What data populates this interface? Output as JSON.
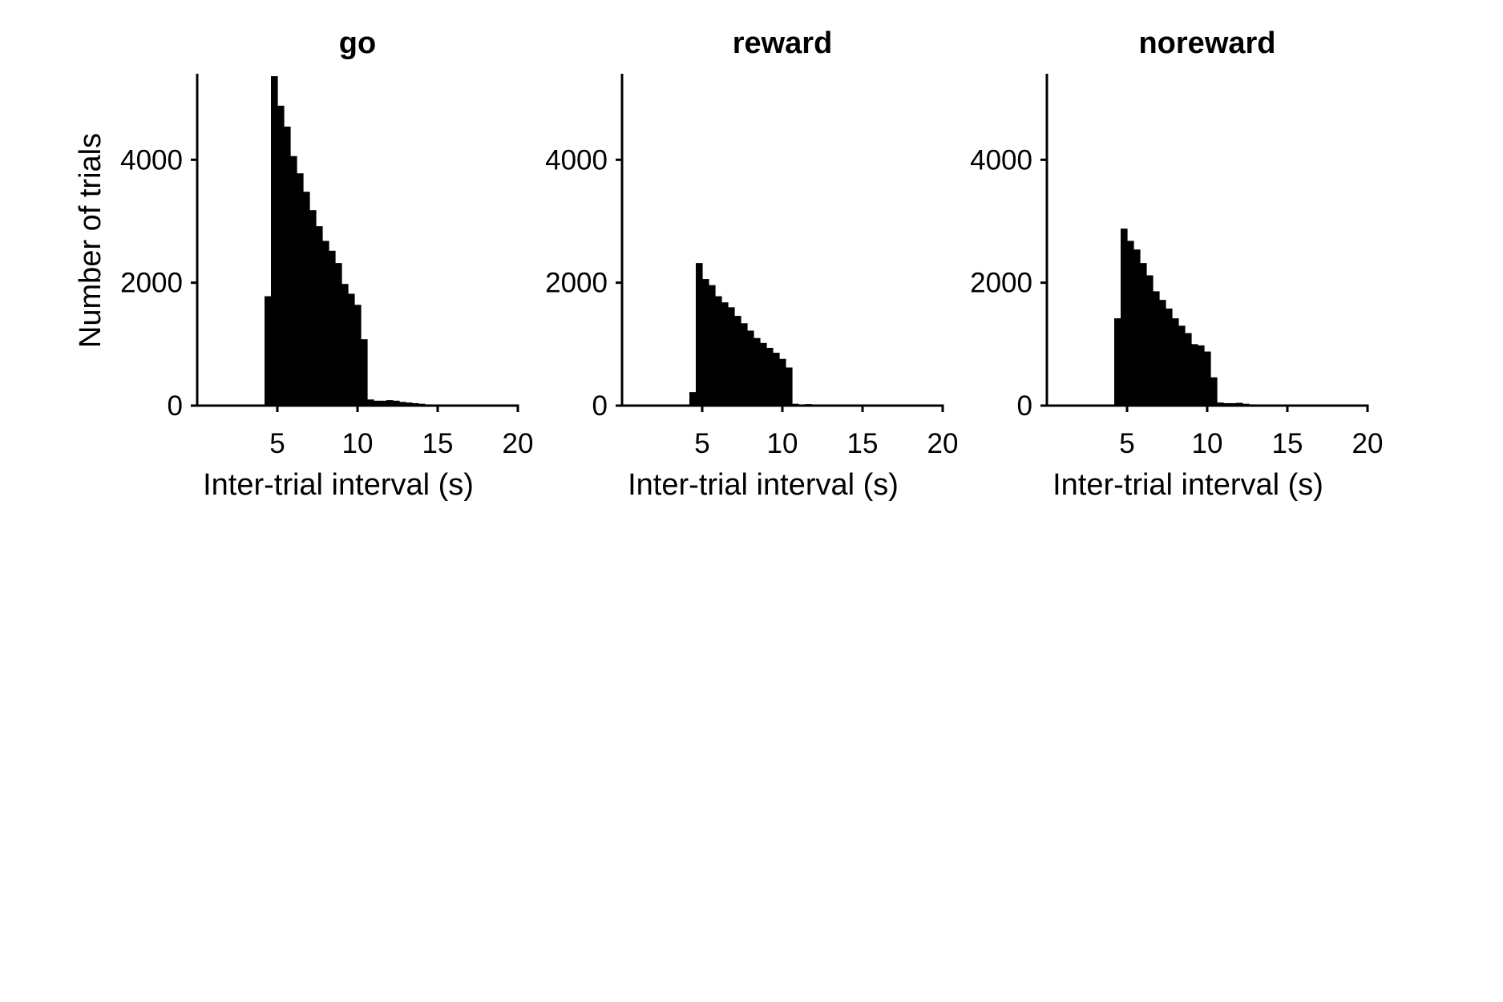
{
  "chart_data": {
    "type": "bar",
    "shared_ylabel": "Number of trials",
    "bin_width": 0.4,
    "bin_start": 4.2,
    "bar_color": "#000000",
    "panels": [
      {
        "title": "go",
        "xlabel": "Inter-trial interval (s)",
        "xlim": [
          0,
          20
        ],
        "ylim": [
          0,
          5400
        ],
        "xticks": [
          5,
          10,
          15,
          20
        ],
        "yticks": [
          0,
          2000,
          4000
        ],
        "values": [
          1780,
          5360,
          4880,
          4540,
          4060,
          3780,
          3480,
          3180,
          2920,
          2680,
          2520,
          2320,
          1980,
          1820,
          1640,
          1080,
          100,
          80,
          80,
          90,
          80,
          60,
          50,
          40,
          30,
          20,
          15,
          12,
          10,
          8,
          6,
          5,
          4,
          3,
          3,
          2,
          2,
          2,
          1,
          1
        ]
      },
      {
        "title": "reward",
        "xlabel": "Inter-trial interval (s)",
        "xlim": [
          0,
          20
        ],
        "ylim": [
          0,
          5400
        ],
        "xticks": [
          5,
          10,
          15,
          20
        ],
        "yticks": [
          0,
          2000,
          4000
        ],
        "values": [
          220,
          2320,
          2060,
          1960,
          1780,
          1680,
          1600,
          1460,
          1340,
          1220,
          1100,
          1020,
          940,
          860,
          760,
          620,
          30,
          20,
          25,
          20,
          15,
          10,
          8,
          6,
          5,
          4,
          3,
          3,
          2,
          2,
          2,
          1,
          1,
          1,
          1,
          1,
          0,
          0,
          0,
          0
        ]
      },
      {
        "title": "noreward",
        "xlabel": "Inter-trial interval (s)",
        "xlim": [
          0,
          20
        ],
        "ylim": [
          0,
          5400
        ],
        "xticks": [
          5,
          10,
          15,
          20
        ],
        "yticks": [
          0,
          2000,
          4000
        ],
        "values": [
          1420,
          2880,
          2680,
          2540,
          2320,
          2120,
          1860,
          1720,
          1580,
          1420,
          1300,
          1180,
          1000,
          980,
          880,
          460,
          50,
          40,
          40,
          45,
          30,
          20,
          15,
          10,
          8,
          6,
          5,
          4,
          3,
          2,
          2,
          2,
          1,
          1,
          1,
          1,
          1,
          0,
          0,
          0
        ]
      }
    ]
  }
}
